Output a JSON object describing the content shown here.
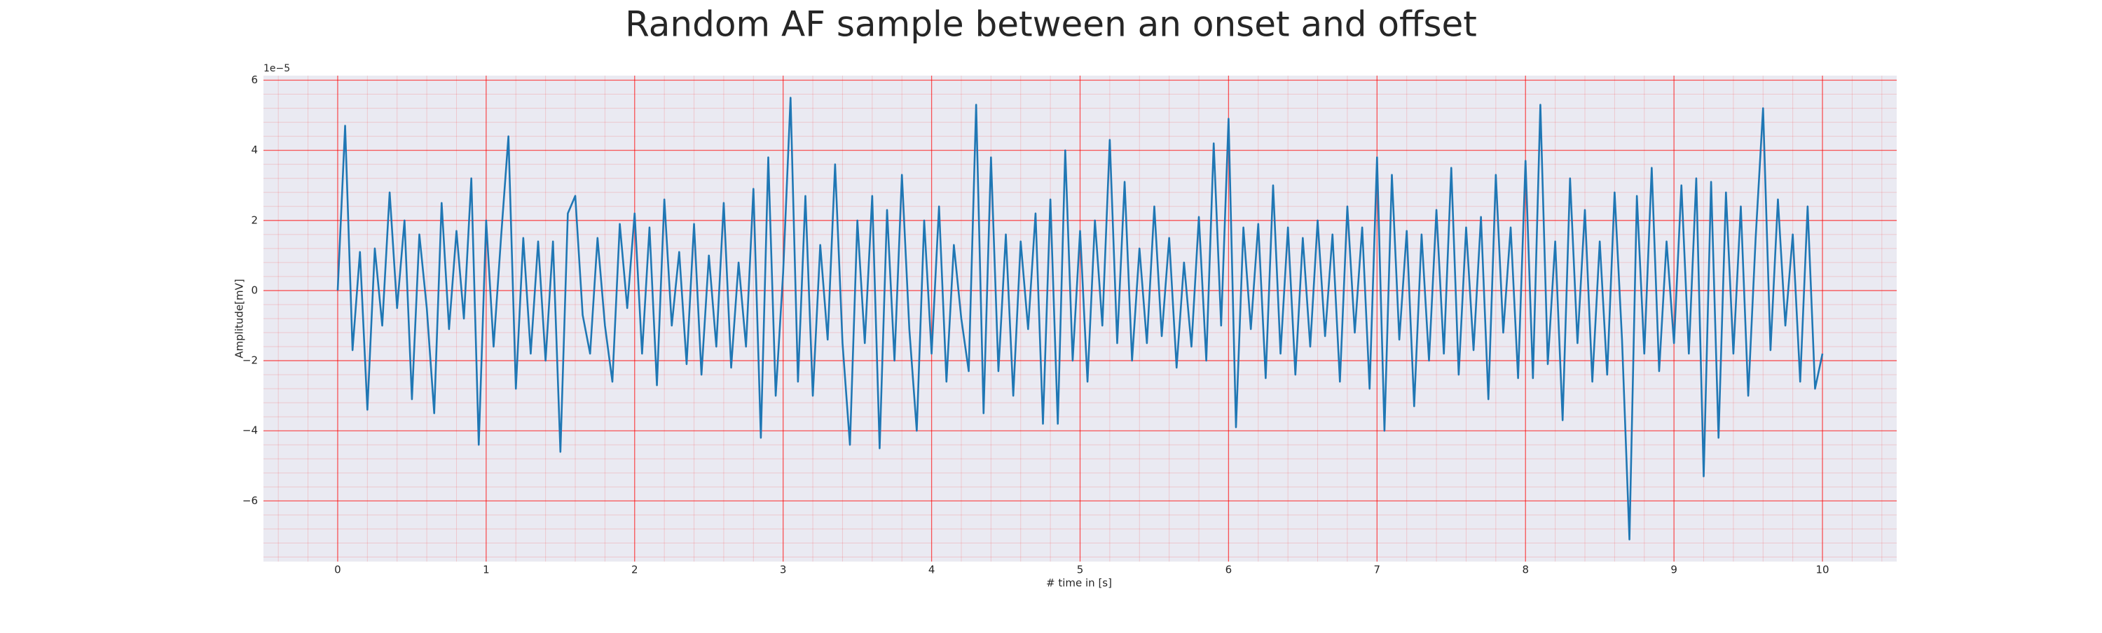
{
  "chart_data": {
    "type": "line",
    "title": "Random AF sample between an onset and offset",
    "xlabel": "# time in [s]",
    "ylabel": "Amplitude[mV]",
    "y_offset_label": "1e−5",
    "color": "#1f77b4",
    "grid": true,
    "grid_color": "#ff0000",
    "minor_grid": true,
    "minor_divisions": 5,
    "background": "#eaeaf2",
    "xlim": [
      -0.5,
      10.5
    ],
    "ylim": [
      -7.73,
      6.13
    ],
    "xticks": [
      0,
      1,
      2,
      3,
      4,
      5,
      6,
      7,
      8,
      9,
      10
    ],
    "yticks": [
      {
        "value": -6,
        "label": "−6"
      },
      {
        "value": -4,
        "label": "−4"
      },
      {
        "value": -2,
        "label": "−2"
      },
      0,
      2,
      4,
      6
    ],
    "x": [
      0,
      0.05,
      0.1,
      0.15,
      0.2,
      0.25,
      0.3,
      0.35,
      0.4,
      0.45,
      0.5,
      0.55,
      0.6,
      0.65,
      0.7,
      0.75,
      0.8,
      0.85,
      0.9,
      0.95,
      1,
      1.05,
      1.1,
      1.15,
      1.2,
      1.25,
      1.3,
      1.35,
      1.4,
      1.45,
      1.5,
      1.55,
      1.6,
      1.65,
      1.7,
      1.75,
      1.8,
      1.85,
      1.9,
      1.95,
      2,
      2.05,
      2.1,
      2.15,
      2.2,
      2.25,
      2.3,
      2.35,
      2.4,
      2.45,
      2.5,
      2.55,
      2.6,
      2.65,
      2.7,
      2.75,
      2.8,
      2.85,
      2.9,
      2.95,
      3,
      3.05,
      3.1,
      3.15,
      3.2,
      3.25,
      3.3,
      3.35,
      3.4,
      3.45,
      3.5,
      3.55,
      3.6,
      3.65,
      3.7,
      3.75,
      3.8,
      3.85,
      3.9,
      3.95,
      4,
      4.05,
      4.1,
      4.15,
      4.2,
      4.25,
      4.3,
      4.35,
      4.4,
      4.45,
      4.5,
      4.55,
      4.6,
      4.65,
      4.7,
      4.75,
      4.8,
      4.85,
      4.9,
      4.95,
      5,
      5.05,
      5.1,
      5.15,
      5.2,
      5.25,
      5.3,
      5.35,
      5.4,
      5.45,
      5.5,
      5.55,
      5.6,
      5.65,
      5.7,
      5.75,
      5.8,
      5.85,
      5.9,
      5.95,
      6,
      6.05,
      6.1,
      6.15,
      6.2,
      6.25,
      6.3,
      6.35,
      6.4,
      6.45,
      6.5,
      6.55,
      6.6,
      6.65,
      6.7,
      6.75,
      6.8,
      6.85,
      6.9,
      6.95,
      7,
      7.05,
      7.1,
      7.15,
      7.2,
      7.25,
      7.3,
      7.35,
      7.4,
      7.45,
      7.5,
      7.55,
      7.6,
      7.65,
      7.7,
      7.75,
      7.8,
      7.85,
      7.9,
      7.95,
      8,
      8.05,
      8.1,
      8.15,
      8.2,
      8.25,
      8.3,
      8.35,
      8.4,
      8.45,
      8.5,
      8.55,
      8.6,
      8.65,
      8.7,
      8.75,
      8.8,
      8.85,
      8.9,
      8.95,
      9,
      9.05,
      9.1,
      9.15,
      9.2,
      9.25,
      9.3,
      9.35,
      9.4,
      9.45,
      9.5,
      9.55,
      9.6,
      9.65,
      9.7,
      9.75,
      9.8,
      9.85,
      9.9,
      9.95,
      10
    ],
    "values": [
      0,
      4.7,
      -1.7,
      1.1,
      -3.4,
      1.2,
      -1.0,
      2.8,
      -0.5,
      2.0,
      -3.1,
      1.6,
      -0.5,
      -3.5,
      2.5,
      -1.1,
      1.7,
      -0.8,
      3.2,
      -4.4,
      2.0,
      -1.6,
      1.5,
      4.4,
      -2.8,
      1.5,
      -1.8,
      1.4,
      -2.0,
      1.4,
      -4.6,
      2.2,
      2.7,
      -0.7,
      -1.8,
      1.5,
      -1.0,
      -2.6,
      1.9,
      -0.5,
      2.2,
      -1.8,
      1.8,
      -2.7,
      2.6,
      -1.0,
      1.1,
      -2.1,
      1.9,
      -2.4,
      1.0,
      -1.6,
      2.5,
      -2.2,
      0.8,
      -1.6,
      2.9,
      -4.2,
      3.8,
      -3.0,
      0.5,
      5.5,
      -2.6,
      2.7,
      -3.0,
      1.3,
      -1.4,
      3.6,
      -1.5,
      -4.4,
      2.0,
      -1.5,
      2.7,
      -4.5,
      2.3,
      -2.0,
      3.3,
      -1.1,
      -4.0,
      2.0,
      -1.8,
      2.4,
      -2.6,
      1.3,
      -0.8,
      -2.3,
      5.3,
      -3.5,
      3.8,
      -2.3,
      1.6,
      -3.0,
      1.4,
      -1.1,
      2.2,
      -3.8,
      2.6,
      -3.8,
      4.0,
      -2.0,
      1.7,
      -2.6,
      2.0,
      -1.0,
      4.3,
      -1.5,
      3.1,
      -2.0,
      1.2,
      -1.5,
      2.4,
      -1.3,
      1.5,
      -2.2,
      0.8,
      -1.6,
      2.1,
      -2.0,
      4.2,
      -1.0,
      4.9,
      -3.9,
      1.8,
      -1.1,
      1.9,
      -2.5,
      3.0,
      -1.8,
      1.8,
      -2.4,
      1.5,
      -1.6,
      2.0,
      -1.3,
      1.6,
      -2.6,
      2.4,
      -1.2,
      1.8,
      -2.8,
      3.8,
      -4.0,
      3.3,
      -1.4,
      1.7,
      -3.3,
      1.6,
      -2.0,
      2.3,
      -1.8,
      3.5,
      -2.4,
      1.8,
      -1.7,
      2.1,
      -3.1,
      3.3,
      -1.2,
      1.8,
      -2.5,
      3.7,
      -2.5,
      5.3,
      -2.1,
      1.4,
      -3.7,
      3.2,
      -1.5,
      2.3,
      -2.6,
      1.4,
      -2.4,
      2.8,
      -1.4,
      -7.1,
      2.7,
      -1.8,
      3.5,
      -2.3,
      1.4,
      -1.5,
      3.0,
      -1.8,
      3.2,
      -5.3,
      3.1,
      -4.2,
      2.8,
      -1.8,
      2.4,
      -3.0,
      1.5,
      5.2,
      -1.7,
      2.6,
      -1.0,
      1.6,
      -2.6,
      2.4,
      -2.8,
      -1.8
    ]
  }
}
